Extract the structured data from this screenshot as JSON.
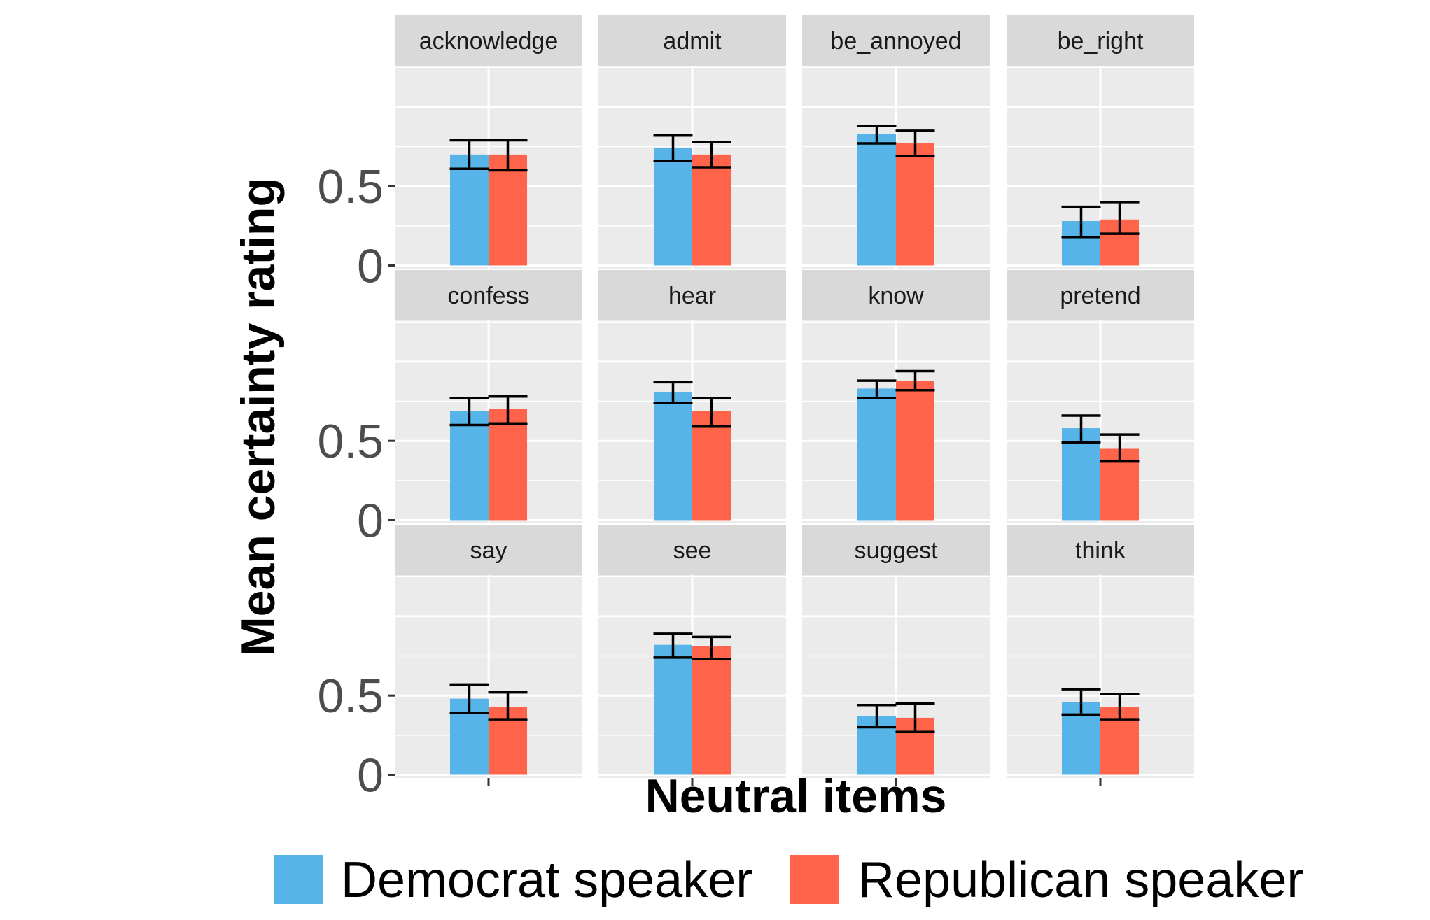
{
  "chart_data": {
    "type": "bar",
    "xlabel": "Neutral items",
    "ylabel": "Mean certainty rating",
    "ylim": [
      -0.02,
      1.26
    ],
    "yticks": [
      {
        "value": 0,
        "label": "0"
      },
      {
        "value": 0.5,
        "label": "0.5"
      }
    ],
    "grid": true,
    "legend_position": "bottom",
    "facet_layout": {
      "rows": 3,
      "cols": 4
    },
    "series": [
      {
        "name": "Democrat speaker",
        "color": "#56B4E9"
      },
      {
        "name": "Republican speaker",
        "color": "#FF634A"
      }
    ],
    "panels": [
      {
        "label": "acknowledge",
        "values": [
          0.7,
          0.7
        ],
        "lower": [
          0.61,
          0.6
        ],
        "upper": [
          0.79,
          0.79
        ]
      },
      {
        "label": "admit",
        "values": [
          0.74,
          0.7
        ],
        "lower": [
          0.66,
          0.62
        ],
        "upper": [
          0.82,
          0.78
        ]
      },
      {
        "label": "be_annoyed",
        "values": [
          0.83,
          0.77
        ],
        "lower": [
          0.77,
          0.69
        ],
        "upper": [
          0.88,
          0.85
        ]
      },
      {
        "label": "be_right",
        "values": [
          0.28,
          0.29
        ],
        "lower": [
          0.18,
          0.2
        ],
        "upper": [
          0.37,
          0.4
        ]
      },
      {
        "label": "confess",
        "values": [
          0.69,
          0.7
        ],
        "lower": [
          0.6,
          0.61
        ],
        "upper": [
          0.77,
          0.78
        ]
      },
      {
        "label": "hear",
        "values": [
          0.81,
          0.69
        ],
        "lower": [
          0.74,
          0.59
        ],
        "upper": [
          0.87,
          0.77
        ]
      },
      {
        "label": "know",
        "values": [
          0.83,
          0.88
        ],
        "lower": [
          0.77,
          0.82
        ],
        "upper": [
          0.88,
          0.94
        ]
      },
      {
        "label": "pretend",
        "values": [
          0.58,
          0.45
        ],
        "lower": [
          0.49,
          0.37
        ],
        "upper": [
          0.66,
          0.54
        ]
      },
      {
        "label": "say",
        "values": [
          0.48,
          0.43
        ],
        "lower": [
          0.39,
          0.35
        ],
        "upper": [
          0.57,
          0.52
        ]
      },
      {
        "label": "see",
        "values": [
          0.82,
          0.81
        ],
        "lower": [
          0.74,
          0.73
        ],
        "upper": [
          0.89,
          0.87
        ]
      },
      {
        "label": "suggest",
        "values": [
          0.37,
          0.36
        ],
        "lower": [
          0.3,
          0.27
        ],
        "upper": [
          0.44,
          0.45
        ]
      },
      {
        "label": "think",
        "values": [
          0.46,
          0.43
        ],
        "lower": [
          0.38,
          0.35
        ],
        "upper": [
          0.54,
          0.51
        ]
      }
    ]
  }
}
